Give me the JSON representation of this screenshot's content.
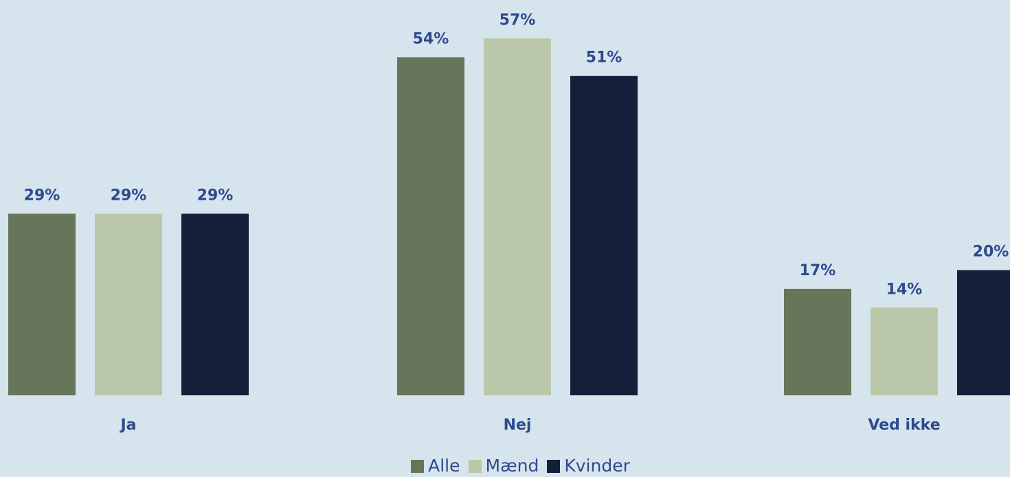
{
  "chart_data": {
    "type": "bar",
    "categories": [
      "Ja",
      "Nej",
      "Ved ikke"
    ],
    "series": [
      {
        "name": "Alle",
        "values": [
          29,
          54,
          17
        ],
        "labels": [
          "29%",
          "54%",
          "17%"
        ]
      },
      {
        "name": "Mænd",
        "values": [
          29,
          57,
          14
        ],
        "labels": [
          "29%",
          "57%",
          "14%"
        ]
      },
      {
        "name": "Kvinder",
        "values": [
          29,
          51,
          20
        ],
        "labels": [
          "29%",
          "51%",
          "20%"
        ]
      }
    ],
    "ylim": [
      0,
      57
    ],
    "grid": false,
    "legend_position": "bottom-center",
    "colors": {
      "Alle": "#67755a",
      "Mænd": "#bac8a9",
      "Kvinder": "#141f3a",
      "text": "#2e4a8c",
      "background": "#d6e4ee"
    }
  }
}
